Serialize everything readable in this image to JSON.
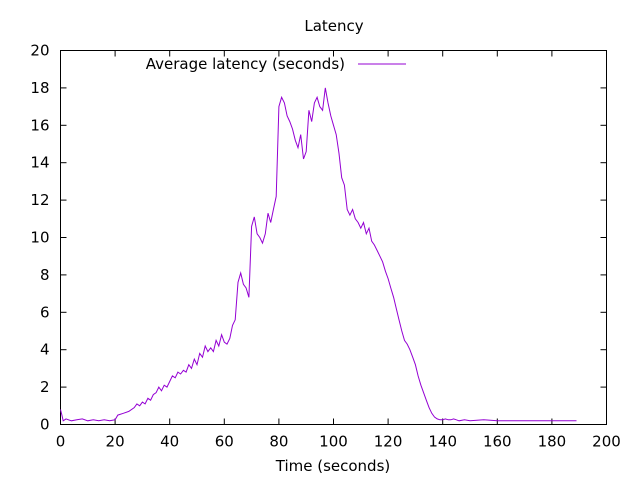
{
  "chart_data": {
    "type": "line",
    "title": "Latency",
    "xlabel": "Time (seconds)",
    "ylabel": "",
    "xlim": [
      0,
      200
    ],
    "ylim": [
      0,
      20
    ],
    "xticks": [
      0,
      20,
      40,
      60,
      80,
      100,
      120,
      140,
      160,
      180,
      200
    ],
    "yticks": [
      0,
      2,
      4,
      6,
      8,
      10,
      12,
      14,
      16,
      18,
      20
    ],
    "grid": false,
    "legend_position": "top-left",
    "series": [
      {
        "name": "Average latency (seconds)",
        "color": "#9400d3",
        "x": [
          0,
          0.5,
          1,
          2,
          4,
          6,
          8,
          10,
          12,
          14,
          16,
          18,
          20,
          21,
          23,
          25,
          27,
          28,
          29,
          30,
          31,
          32,
          33,
          34,
          35,
          36,
          37,
          38,
          39,
          40,
          41,
          42,
          43,
          44,
          45,
          46,
          47,
          48,
          49,
          50,
          51,
          52,
          53,
          54,
          55,
          56,
          57,
          58,
          59,
          60,
          61,
          62,
          63,
          64,
          65,
          66,
          67,
          68,
          69,
          70,
          71,
          72,
          73,
          74,
          75,
          76,
          77,
          78,
          79,
          80,
          81,
          82,
          83,
          84,
          85,
          86,
          87,
          88,
          89,
          90,
          91,
          92,
          93,
          94,
          95,
          96,
          97,
          98,
          99,
          100,
          101,
          102,
          103,
          104,
          105,
          106,
          107,
          108,
          109,
          110,
          111,
          112,
          113,
          114,
          115,
          116,
          117,
          118,
          119,
          120,
          121,
          122,
          123,
          124,
          125,
          126,
          127,
          128,
          129,
          130,
          131,
          132,
          133,
          134,
          135,
          136,
          137,
          138,
          139,
          140,
          141,
          142,
          143,
          144,
          145,
          146,
          148,
          150,
          155,
          160,
          165,
          170,
          175,
          180,
          185,
          189
        ],
        "y": [
          0.8,
          0.5,
          0.2,
          0.3,
          0.2,
          0.25,
          0.3,
          0.2,
          0.25,
          0.2,
          0.25,
          0.2,
          0.25,
          0.5,
          0.6,
          0.7,
          0.9,
          1.1,
          1.0,
          1.2,
          1.1,
          1.4,
          1.3,
          1.6,
          1.7,
          2.0,
          1.8,
          2.1,
          2.0,
          2.3,
          2.6,
          2.5,
          2.8,
          2.7,
          2.9,
          2.8,
          3.2,
          3.0,
          3.5,
          3.2,
          3.8,
          3.6,
          4.2,
          3.9,
          4.1,
          3.9,
          4.5,
          4.2,
          4.8,
          4.4,
          4.3,
          4.6,
          5.3,
          5.6,
          7.6,
          8.1,
          7.5,
          7.3,
          6.8,
          10.6,
          11.1,
          10.2,
          10.0,
          9.7,
          10.2,
          11.3,
          10.8,
          11.5,
          12.2,
          17.0,
          17.5,
          17.2,
          16.5,
          16.2,
          15.8,
          15.2,
          14.8,
          15.5,
          14.2,
          14.6,
          16.8,
          16.2,
          17.2,
          17.5,
          17.0,
          16.8,
          18.0,
          17.2,
          16.5,
          16.0,
          15.5,
          14.5,
          13.2,
          12.8,
          11.5,
          11.2,
          11.5,
          11.0,
          10.8,
          10.5,
          10.8,
          10.2,
          10.5,
          9.8,
          9.6,
          9.3,
          9.0,
          8.7,
          8.2,
          7.8,
          7.3,
          6.8,
          6.2,
          5.6,
          5.0,
          4.5,
          4.3,
          4.0,
          3.6,
          3.2,
          2.6,
          2.1,
          1.7,
          1.3,
          0.9,
          0.6,
          0.4,
          0.3,
          0.25,
          0.25,
          0.3,
          0.25,
          0.25,
          0.3,
          0.25,
          0.2,
          0.25,
          0.2,
          0.25,
          0.2,
          0.2,
          0.2,
          0.2,
          0.2,
          0.2,
          0.2
        ]
      }
    ]
  }
}
